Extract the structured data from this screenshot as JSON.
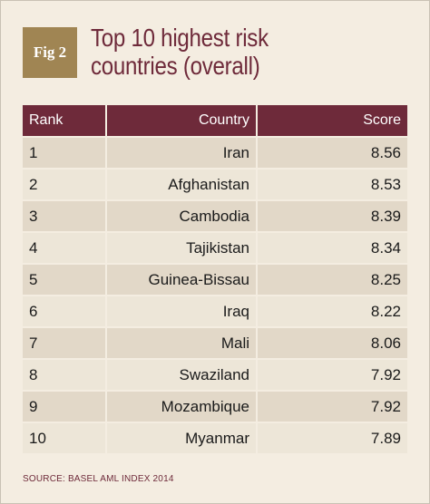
{
  "badge": "Fig 2",
  "title": "Top 10 highest risk countries (overall)",
  "source": "SOURCE:  BASEL AML INDEX 2014",
  "chart_data": {
    "type": "table",
    "title": "Top 10 highest risk countries (overall)",
    "columns": [
      "Rank",
      "Country",
      "Score"
    ],
    "rows": [
      {
        "rank": "1",
        "country": "Iran",
        "score": "8.56"
      },
      {
        "rank": "2",
        "country": "Afghanistan",
        "score": "8.53"
      },
      {
        "rank": "3",
        "country": "Cambodia",
        "score": "8.39"
      },
      {
        "rank": "4",
        "country": "Tajikistan",
        "score": "8.34"
      },
      {
        "rank": "5",
        "country": "Guinea-Bissau",
        "score": "8.25"
      },
      {
        "rank": "6",
        "country": "Iraq",
        "score": "8.22"
      },
      {
        "rank": "7",
        "country": "Mali",
        "score": "8.06"
      },
      {
        "rank": "8",
        "country": "Swaziland",
        "score": "7.92"
      },
      {
        "rank": "9",
        "country": "Mozambique",
        "score": "7.92"
      },
      {
        "rank": "10",
        "country": "Myanmar",
        "score": "7.89"
      }
    ]
  },
  "colors": {
    "header": "#6e2a3a",
    "badge": "#a08553",
    "background": "#f4ede1",
    "row_odd": "#e2d8c8",
    "row_even": "#ede6d8"
  }
}
